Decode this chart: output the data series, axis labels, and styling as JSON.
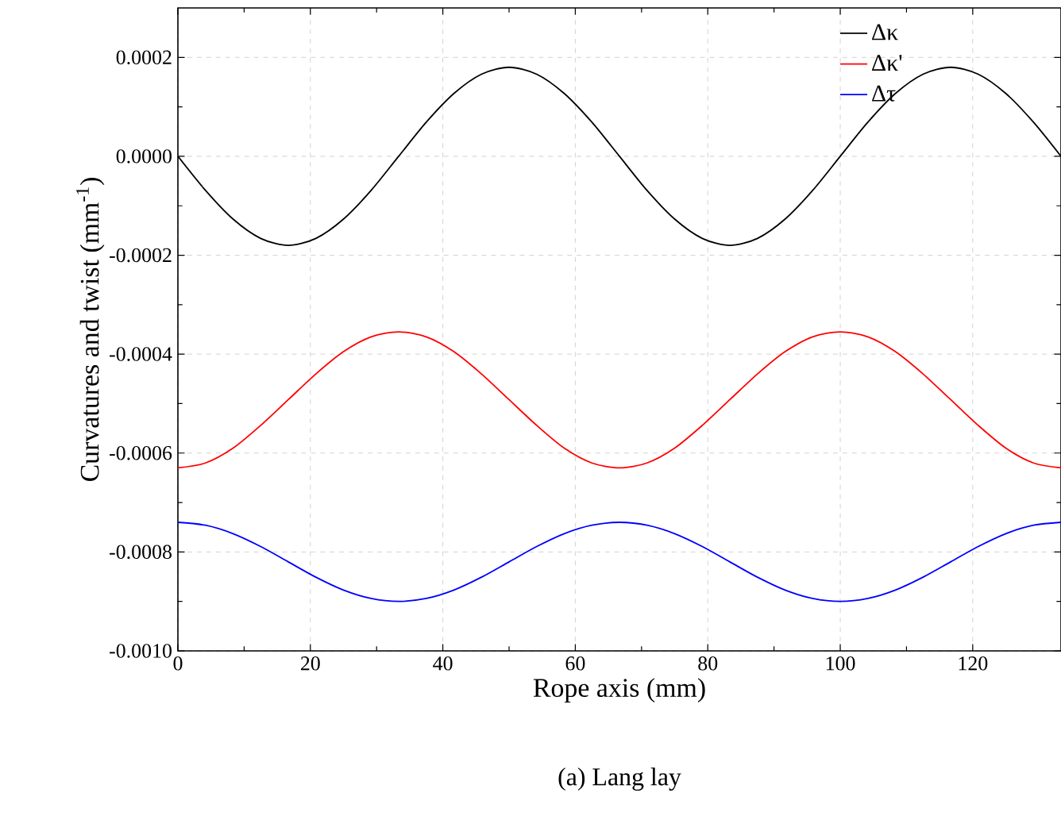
{
  "chart_data": {
    "type": "line",
    "xlabel": "Rope axis (mm)",
    "ylabel": "Curvatures and twist (mm$^{-1}$)",
    "annotations": [
      "(a) Lang lay"
    ],
    "x": [
      0,
      4.17,
      8.33,
      12.5,
      16.67,
      20.83,
      25,
      29.17,
      33.33,
      37.5,
      41.67,
      45.83,
      50,
      54.17,
      58.33,
      62.5,
      66.67,
      70.83,
      75,
      79.17,
      83.33,
      87.5,
      91.67,
      95.83,
      100,
      104.17,
      108.33,
      112.5,
      116.67,
      120.83,
      125,
      129.17,
      133.33
    ],
    "series": [
      {
        "name": "Δκ",
        "color": "#000000",
        "values": [
          0,
          -6.9e-05,
          -0.000127,
          -0.000166,
          -0.00018,
          -0.000166,
          -0.000127,
          -6.9e-05,
          0,
          6.9e-05,
          0.000127,
          0.000166,
          0.00018,
          0.000166,
          0.000127,
          6.9e-05,
          0,
          -6.9e-05,
          -0.000127,
          -0.000166,
          -0.00018,
          -0.000166,
          -0.000127,
          -6.9e-05,
          0,
          6.9e-05,
          0.000127,
          0.000166,
          0.00018,
          0.000166,
          0.000127,
          6.9e-05,
          0
        ]
      },
      {
        "name": "Δκ'",
        "color": "#ff0000",
        "values": [
          -0.00063,
          -0.00062,
          -0.00059,
          -0.000544,
          -0.000492,
          -0.00044,
          -0.000395,
          -0.000365,
          -0.000355,
          -0.000365,
          -0.000395,
          -0.00044,
          -0.000492,
          -0.000544,
          -0.00059,
          -0.00062,
          -0.00063,
          -0.00062,
          -0.00059,
          -0.000544,
          -0.000492,
          -0.00044,
          -0.000395,
          -0.000365,
          -0.000355,
          -0.000365,
          -0.000395,
          -0.00044,
          -0.000492,
          -0.000544,
          -0.00059,
          -0.00062,
          -0.00063
        ]
      },
      {
        "name": "Δτ",
        "color": "#0000ff",
        "values": [
          -0.00074,
          -0.000746,
          -0.000763,
          -0.000789,
          -0.00082,
          -0.000851,
          -0.000877,
          -0.000894,
          -0.0009,
          -0.000894,
          -0.000877,
          -0.000851,
          -0.00082,
          -0.000789,
          -0.000763,
          -0.000746,
          -0.00074,
          -0.000746,
          -0.000763,
          -0.000789,
          -0.00082,
          -0.000851,
          -0.000877,
          -0.000894,
          -0.0009,
          -0.000894,
          -0.000877,
          -0.000851,
          -0.00082,
          -0.000789,
          -0.000763,
          -0.000746,
          -0.00074
        ]
      }
    ],
    "xlim": [
      0,
      133.33
    ],
    "ylim": [
      -0.001,
      0.0003
    ],
    "xticks": [
      0,
      20,
      40,
      60,
      80,
      100,
      120
    ],
    "yticks": [
      {
        "value": -0.001,
        "label": "-0.0010"
      },
      {
        "value": -0.0008,
        "label": "-0.0008"
      },
      {
        "value": -0.0006,
        "label": "-0.0006"
      },
      {
        "value": -0.0004,
        "label": "-0.0004"
      },
      {
        "value": -0.0002,
        "label": "-0.0002"
      },
      {
        "value": 0,
        "label": "0.0000"
      },
      {
        "value": 0.0002,
        "label": "0.0002"
      }
    ],
    "grid": true,
    "legend": "top right",
    "line_style": "solid",
    "marker": "none"
  }
}
